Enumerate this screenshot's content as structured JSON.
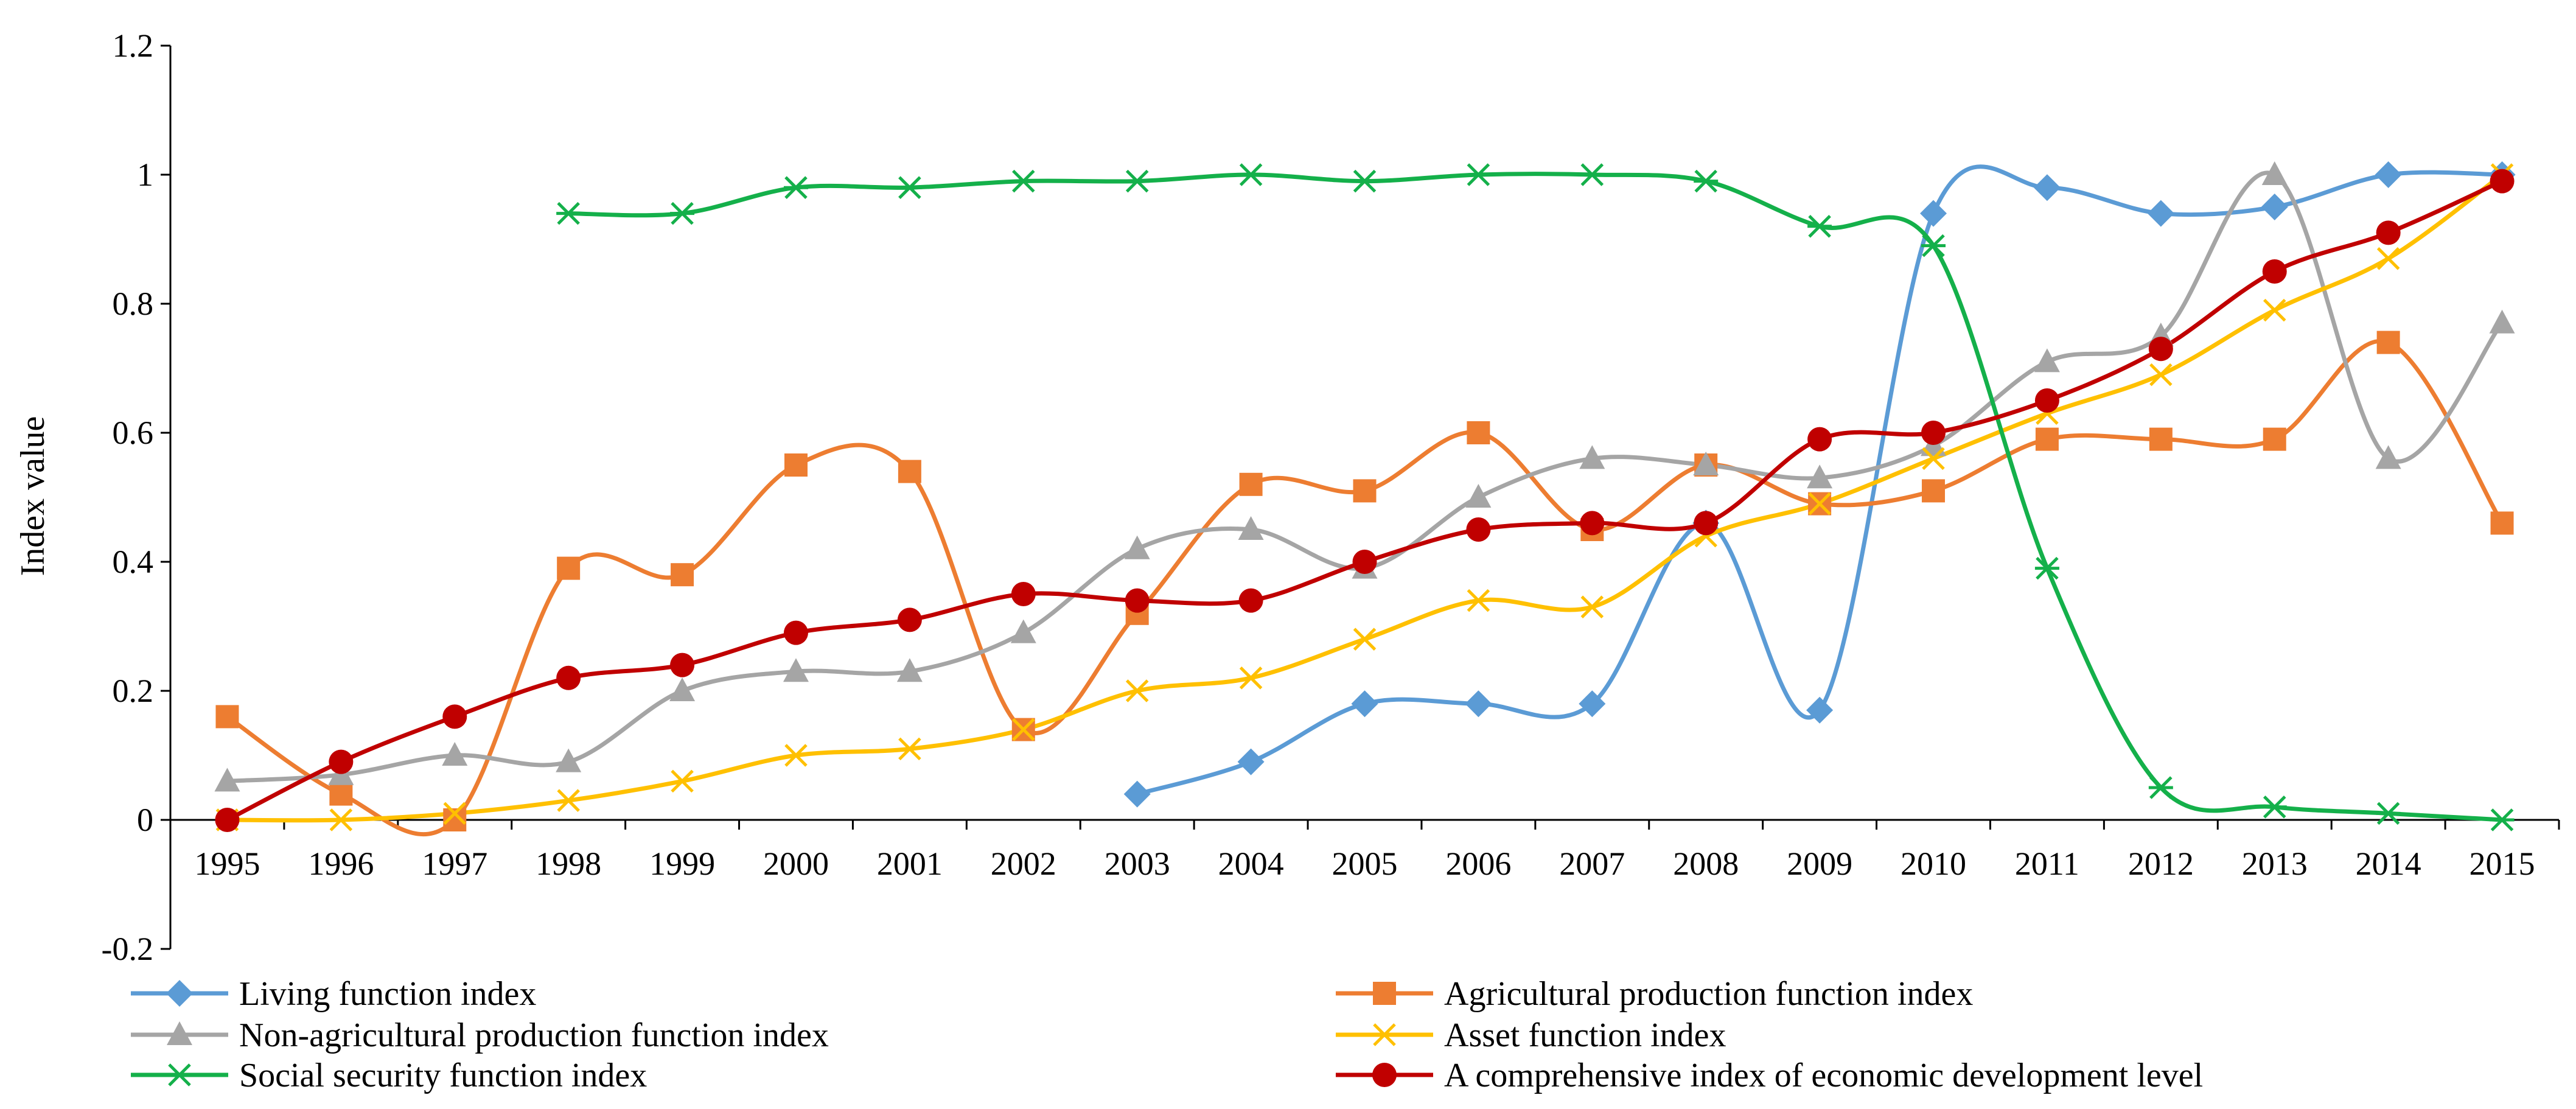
{
  "chart_data": {
    "type": "line",
    "title": "",
    "xlabel": "",
    "ylabel": "Index value",
    "ylim": [
      -0.2,
      1.2
    ],
    "yticks": [
      -0.2,
      0,
      0.2,
      0.4,
      0.6,
      0.8,
      1,
      1.2
    ],
    "ytick_labels": [
      "-0.2",
      "0",
      "0.2",
      "0.4",
      "0.6",
      "0.8",
      "1",
      "1.2"
    ],
    "categories": [
      "1995",
      "1996",
      "1997",
      "1998",
      "1999",
      "2000",
      "2001",
      "2002",
      "2003",
      "2004",
      "2005",
      "2006",
      "2007",
      "2008",
      "2009",
      "2010",
      "2011",
      "2012",
      "2013",
      "2014",
      "2015"
    ],
    "grid": false,
    "smooth": true,
    "legend_position": "bottom",
    "series": [
      {
        "name": "Living function index",
        "color": "#5B9BD5",
        "marker": "diamond",
        "values": [
          null,
          null,
          null,
          null,
          null,
          null,
          null,
          null,
          0.04,
          0.09,
          0.18,
          0.18,
          0.18,
          0.46,
          0.17,
          0.94,
          0.98,
          0.94,
          0.95,
          1.0,
          1.0
        ]
      },
      {
        "name": "Agricultural production function index",
        "color": "#ED7D31",
        "marker": "square",
        "values": [
          0.16,
          0.04,
          0.0,
          0.39,
          0.38,
          0.55,
          0.54,
          0.14,
          0.32,
          0.52,
          0.51,
          0.6,
          0.45,
          0.55,
          0.49,
          0.51,
          0.59,
          0.59,
          0.59,
          0.74,
          0.46
        ]
      },
      {
        "name": "Non-agricultural production function index",
        "color": "#A5A5A5",
        "marker": "triangle",
        "values": [
          0.06,
          0.07,
          0.1,
          0.09,
          0.2,
          0.23,
          0.23,
          0.29,
          0.42,
          0.45,
          0.39,
          0.5,
          0.56,
          0.55,
          0.53,
          0.58,
          0.71,
          0.75,
          1.0,
          0.56,
          0.77
        ]
      },
      {
        "name": "Asset function index",
        "color": "#FFC000",
        "marker": "x",
        "values": [
          0.0,
          0.0,
          0.01,
          0.03,
          0.06,
          0.1,
          0.11,
          0.14,
          0.2,
          0.22,
          0.28,
          0.34,
          0.33,
          0.44,
          0.49,
          0.56,
          0.63,
          0.69,
          0.79,
          0.87,
          1.0
        ]
      },
      {
        "name": "Social security function index",
        "color": "#14B04A",
        "marker": "asterisk",
        "values": [
          null,
          null,
          null,
          0.94,
          0.94,
          0.98,
          0.98,
          0.99,
          0.99,
          1.0,
          0.99,
          1.0,
          1.0,
          0.99,
          0.92,
          0.89,
          0.39,
          0.05,
          0.02,
          0.01,
          0.0
        ]
      },
      {
        "name": "A comprehensive index of economic development level",
        "color": "#C00000",
        "marker": "circle",
        "values": [
          0.0,
          0.09,
          0.16,
          0.22,
          0.24,
          0.29,
          0.31,
          0.35,
          0.34,
          0.34,
          0.4,
          0.45,
          0.46,
          0.46,
          0.59,
          0.6,
          0.65,
          0.73,
          0.85,
          0.91,
          0.99
        ]
      }
    ]
  }
}
